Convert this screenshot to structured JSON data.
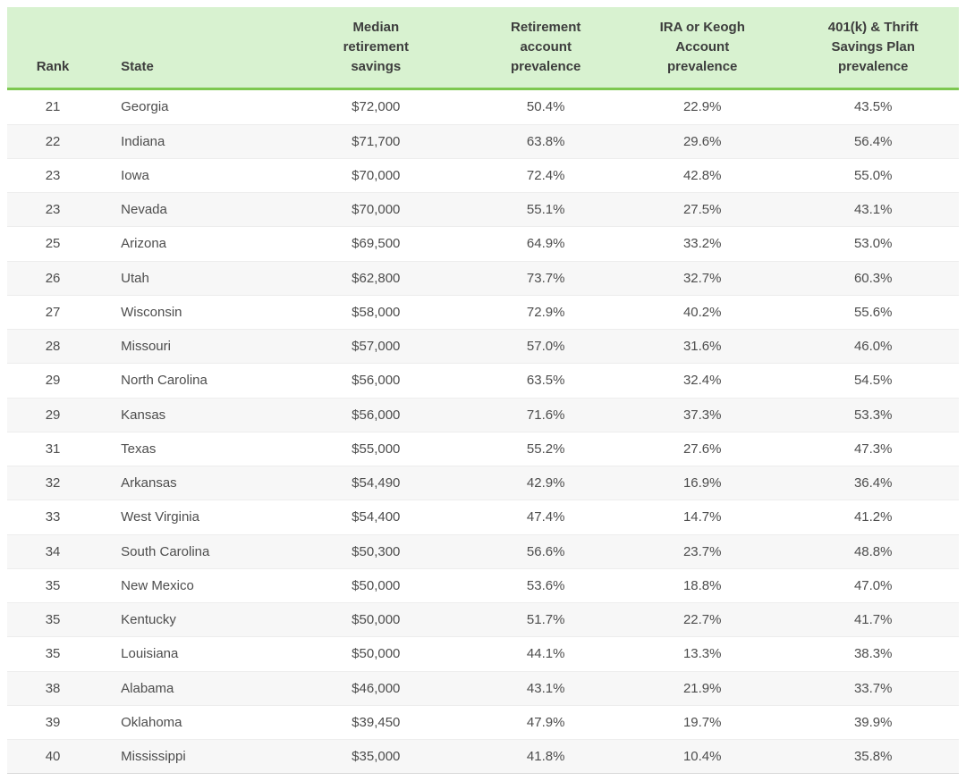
{
  "chart_data": {
    "type": "table",
    "columns": [
      "Rank",
      "State",
      "Median retirement savings",
      "Retirement account prevalence",
      "IRA or Keogh Account prevalence",
      "401(k) & Thrift Savings Plan prevalence"
    ],
    "rows": [
      [
        "21",
        "Georgia",
        "$72,000",
        "50.4%",
        "22.9%",
        "43.5%"
      ],
      [
        "22",
        "Indiana",
        "$71,700",
        "63.8%",
        "29.6%",
        "56.4%"
      ],
      [
        "23",
        "Iowa",
        "$70,000",
        "72.4%",
        "42.8%",
        "55.0%"
      ],
      [
        "23",
        "Nevada",
        "$70,000",
        "55.1%",
        "27.5%",
        "43.1%"
      ],
      [
        "25",
        "Arizona",
        "$69,500",
        "64.9%",
        "33.2%",
        "53.0%"
      ],
      [
        "26",
        "Utah",
        "$62,800",
        "73.7%",
        "32.7%",
        "60.3%"
      ],
      [
        "27",
        "Wisconsin",
        "$58,000",
        "72.9%",
        "40.2%",
        "55.6%"
      ],
      [
        "28",
        "Missouri",
        "$57,000",
        "57.0%",
        "31.6%",
        "46.0%"
      ],
      [
        "29",
        "North Carolina",
        "$56,000",
        "63.5%",
        "32.4%",
        "54.5%"
      ],
      [
        "29",
        "Kansas",
        "$56,000",
        "71.6%",
        "37.3%",
        "53.3%"
      ],
      [
        "31",
        "Texas",
        "$55,000",
        "55.2%",
        "27.6%",
        "47.3%"
      ],
      [
        "32",
        "Arkansas",
        "$54,490",
        "42.9%",
        "16.9%",
        "36.4%"
      ],
      [
        "33",
        "West Virginia",
        "$54,400",
        "47.4%",
        "14.7%",
        "41.2%"
      ],
      [
        "34",
        "South Carolina",
        "$50,300",
        "56.6%",
        "23.7%",
        "48.8%"
      ],
      [
        "35",
        "New Mexico",
        "$50,000",
        "53.6%",
        "18.8%",
        "47.0%"
      ],
      [
        "35",
        "Kentucky",
        "$50,000",
        "51.7%",
        "22.7%",
        "41.7%"
      ],
      [
        "35",
        "Louisiana",
        "$50,000",
        "44.1%",
        "13.3%",
        "38.3%"
      ],
      [
        "38",
        "Alabama",
        "$46,000",
        "43.1%",
        "21.9%",
        "33.7%"
      ],
      [
        "39",
        "Oklahoma",
        "$39,450",
        "47.9%",
        "19.7%",
        "39.9%"
      ],
      [
        "40",
        "Mississippi",
        "$35,000",
        "41.8%",
        "10.4%",
        "35.8%"
      ]
    ]
  },
  "colors": {
    "header_bg": "#d8f2d0",
    "header_border": "#7dc850",
    "stripe_bg": "#f7f7f7",
    "row_border": "#ededed",
    "body_text": "#4d4d4d",
    "header_text": "#3d3d3d"
  }
}
